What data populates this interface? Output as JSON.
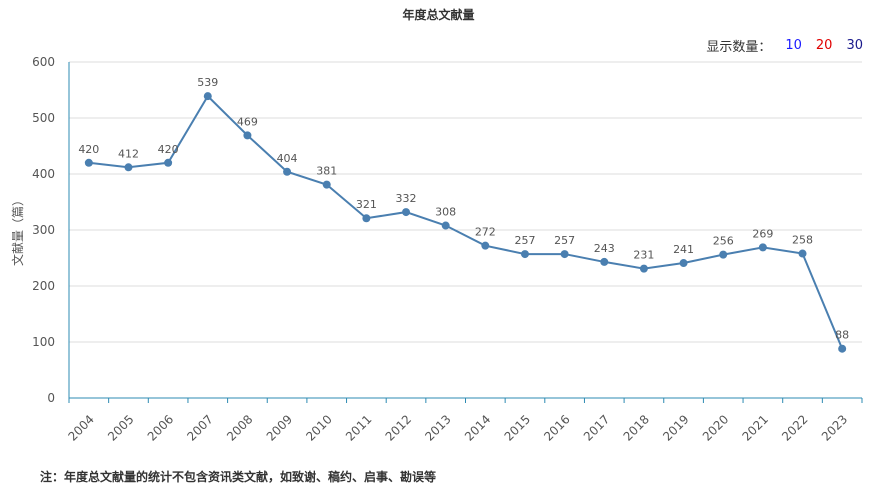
{
  "chart_data": {
    "type": "line",
    "title": "年度总文献量",
    "ylabel": "文献量（篇）",
    "xlabel": "",
    "categories": [
      "2004",
      "2005",
      "2006",
      "2007",
      "2008",
      "2009",
      "2010",
      "2011",
      "2012",
      "2013",
      "2014",
      "2015",
      "2016",
      "2017",
      "2018",
      "2019",
      "2020",
      "2021",
      "2022",
      "2023"
    ],
    "values": [
      420,
      412,
      420,
      539,
      469,
      404,
      381,
      321,
      332,
      308,
      272,
      257,
      257,
      243,
      231,
      241,
      256,
      269,
      258,
      88
    ],
    "ylim": [
      0,
      600
    ],
    "yticks": [
      0,
      100,
      200,
      300,
      400,
      500,
      600
    ],
    "grid": true,
    "line_color": "#4a7fb0"
  },
  "display_count": {
    "label": "显示数量：",
    "options": [
      {
        "value": "10",
        "color": "#1a1aff"
      },
      {
        "value": "20",
        "color": "#e00000"
      },
      {
        "value": "30",
        "color": "#1a1a8c"
      }
    ]
  },
  "footnote": "注：年度总文献量的统计不包含资讯类文献，如致谢、稿约、启事、勘误等"
}
